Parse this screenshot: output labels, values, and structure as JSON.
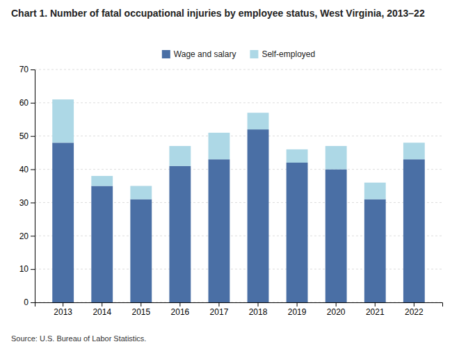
{
  "chart_data": {
    "type": "bar",
    "title": "Chart 1. Number of fatal occupational injuries by employee status, West Virginia, 2013–22",
    "categories": [
      "2013",
      "2014",
      "2015",
      "2016",
      "2017",
      "2018",
      "2019",
      "2020",
      "2021",
      "2022"
    ],
    "series": [
      {
        "name": "Wage and salary",
        "color": "#4a6fa5",
        "values": [
          48,
          35,
          31,
          41,
          43,
          52,
          42,
          40,
          31,
          43
        ]
      },
      {
        "name": "Self-employed",
        "color": "#add8e6",
        "values": [
          13,
          3,
          4,
          6,
          8,
          5,
          4,
          7,
          5,
          5
        ]
      }
    ],
    "stacked": true,
    "ylim": [
      0,
      70
    ],
    "yticks": [
      0,
      10,
      20,
      30,
      40,
      50,
      60,
      70
    ],
    "grid": true,
    "legend": "top",
    "annotations": [
      "Source: U.S. Bureau of Labor Statistics."
    ]
  }
}
